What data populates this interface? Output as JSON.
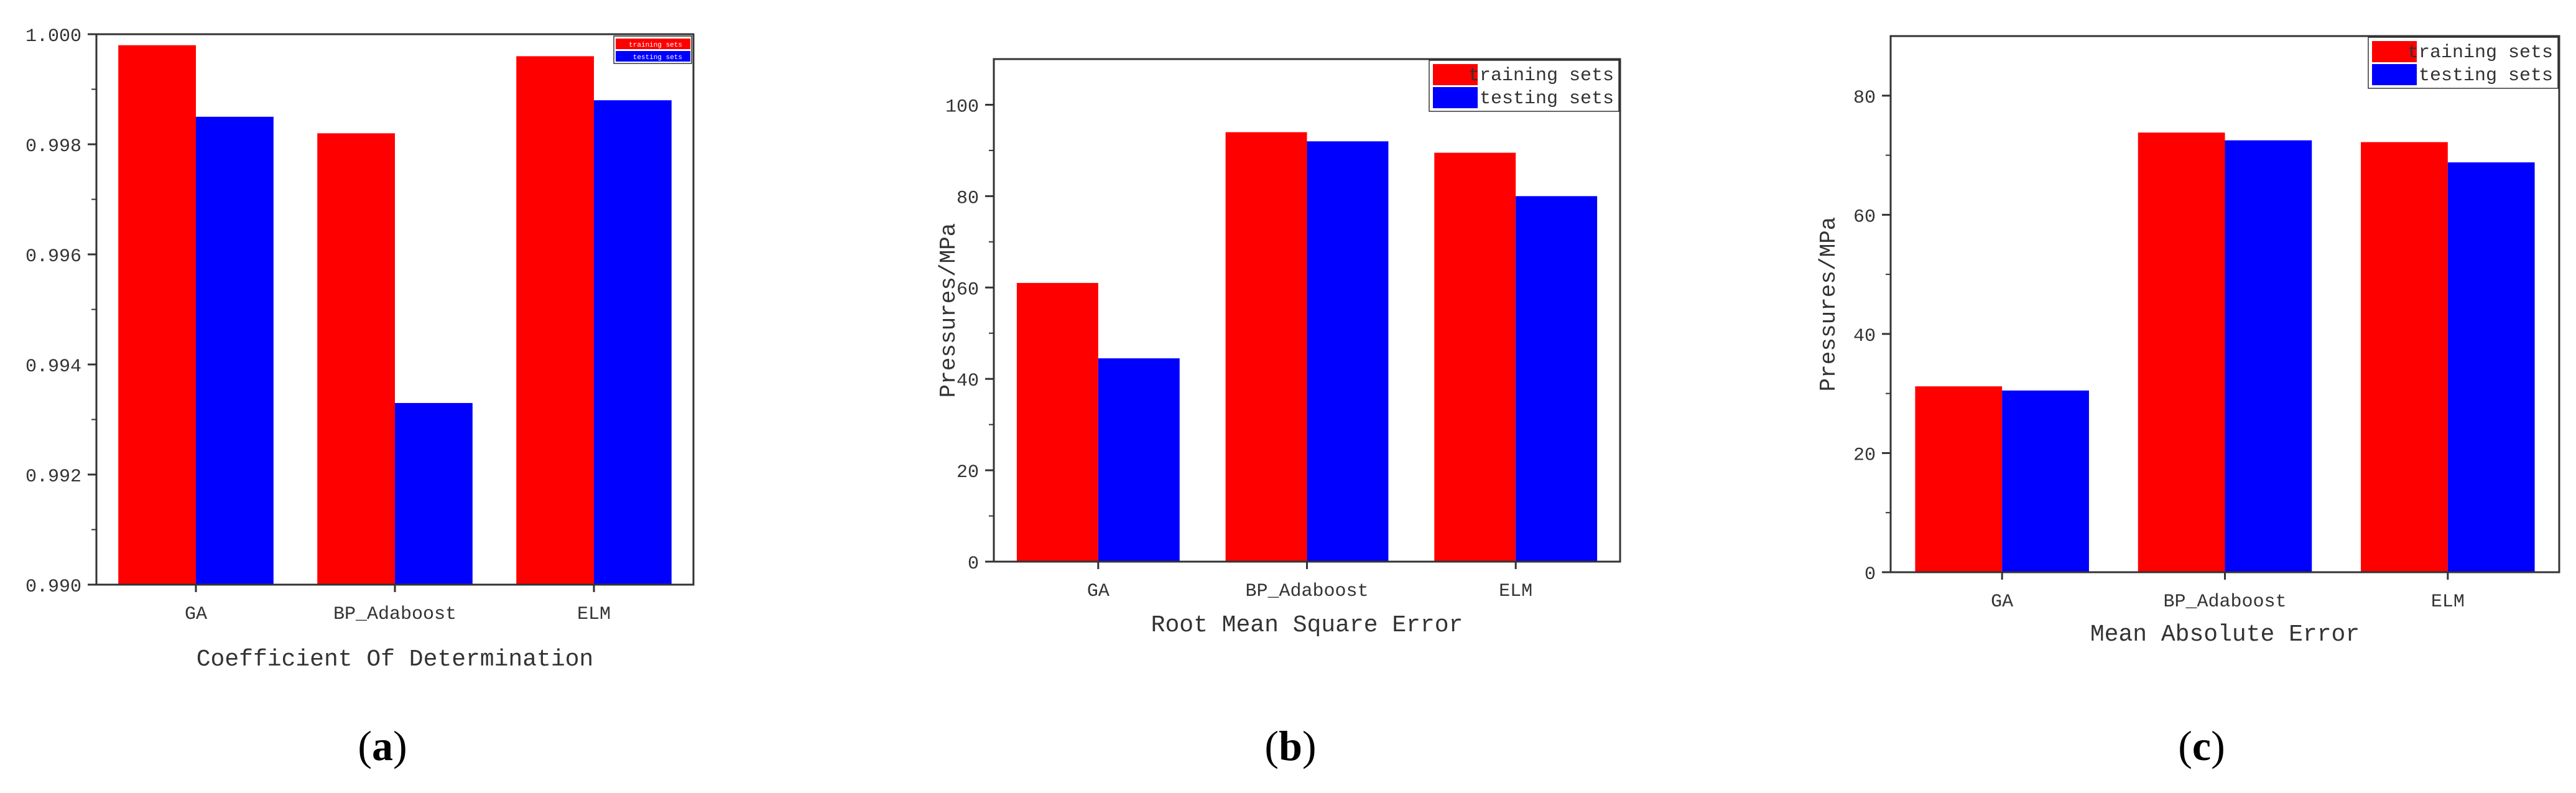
{
  "colors": {
    "training": "#ff0000",
    "testing": "#0000ff",
    "axis": "#333333"
  },
  "captions": [
    {
      "open": "(",
      "letter": "a",
      "close": ")"
    },
    {
      "open": "(",
      "letter": "b",
      "close": ")"
    },
    {
      "open": "(",
      "letter": "c",
      "close": ")"
    }
  ],
  "chart_data": [
    {
      "type": "bar",
      "title": "",
      "xlabel": "Coefficient Of Determination",
      "ylabel": "",
      "categories": [
        "GA",
        "BP_Adaboost",
        "ELM"
      ],
      "ylim": [
        0.99,
        1.0
      ],
      "yticks": [
        0.99,
        0.992,
        0.994,
        0.996,
        0.998,
        1.0
      ],
      "ytick_labels": [
        "0.990",
        "0.992",
        "0.994",
        "0.996",
        "0.998",
        "1.000"
      ],
      "legend": "top-right",
      "series": [
        {
          "name": "training sets",
          "values": [
            0.9998,
            0.9982,
            0.9996
          ]
        },
        {
          "name": "testing sets",
          "values": [
            0.9985,
            0.9933,
            0.9988
          ]
        }
      ]
    },
    {
      "type": "bar",
      "title": "",
      "xlabel": "Root Mean Square Error",
      "ylabel": "Pressures/MPa",
      "categories": [
        "GA",
        "BP_Adaboost",
        "ELM"
      ],
      "ylim": [
        0,
        110
      ],
      "yticks": [
        0,
        20,
        40,
        60,
        80,
        100
      ],
      "ytick_labels": [
        "0",
        "20",
        "40",
        "60",
        "80",
        "100"
      ],
      "legend": "top-right",
      "series": [
        {
          "name": "training sets",
          "values": [
            61,
            94,
            89.5
          ]
        },
        {
          "name": "testing sets",
          "values": [
            44.5,
            92,
            80
          ]
        }
      ]
    },
    {
      "type": "bar",
      "title": "",
      "xlabel": "Mean Absolute Error",
      "ylabel": "Pressures/MPa",
      "categories": [
        "GA",
        "BP_Adaboost",
        "ELM"
      ],
      "ylim": [
        0,
        90
      ],
      "yticks": [
        0,
        20,
        40,
        60,
        80
      ],
      "ytick_labels": [
        "0",
        "20",
        "40",
        "60",
        "80"
      ],
      "legend": "top-right",
      "series": [
        {
          "name": "training sets",
          "values": [
            31.2,
            73.8,
            72.2
          ]
        },
        {
          "name": "testing sets",
          "values": [
            30.5,
            72.5,
            68.8
          ]
        }
      ]
    }
  ]
}
